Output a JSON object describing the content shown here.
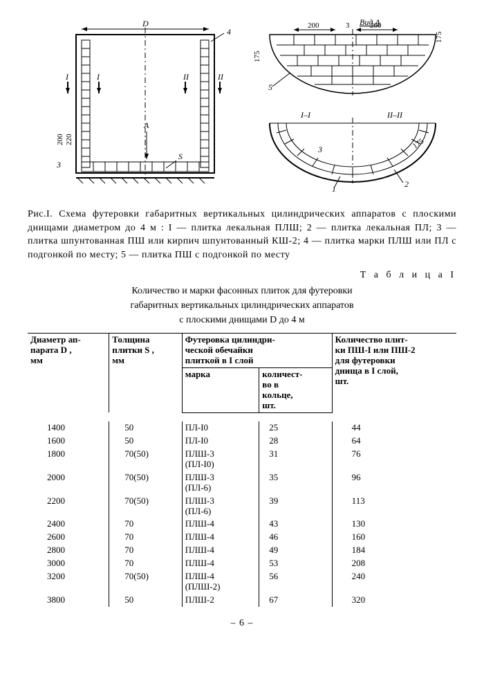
{
  "diagram": {
    "view_a_label": "Вид А",
    "dim_D": "D",
    "dim_200a": "200",
    "dim_200b": "200",
    "dim_175a": "175",
    "dim_175b": "175",
    "dim_175c": "175",
    "dim_200v": "200",
    "dim_220v": "220",
    "sec_I": "I",
    "sec_II": "II",
    "sec_I_I": "I–I",
    "sec_II_II": "II–II",
    "mark_A": "А",
    "mark_S": "S",
    "call_1": "1",
    "call_2": "2",
    "call_3": "3",
    "call_3b": "3",
    "call_4": "4",
    "call_5": "5"
  },
  "caption": "Рис.I. Схема футеровки габаритных вертикальных цилиндрических аппаратов с плоскими днищами диаметром до 4 м : I — плитка лекальная ПЛШ; 2 — плитка лекальная ПЛ; 3 — плитка шпунтованная ПШ или кирпич шпунтованный КШ-2; 4 — плитка марки ПЛШ или ПЛ с подгонкой по месту; 5 — плитка ПШ с подгонкой по месту",
  "table_label": "Т а б л и ц а   I",
  "table_title_line1": "Количество и марки фасонных плиток для футеровки",
  "table_title_line2": "габаритных вертикальных цилиндрических аппаратов",
  "table_title_line3": "с плоскими днищами   D   до 4 м",
  "headers": {
    "col1": "Диаметр ап-\nпарата D ,\nмм",
    "col2": "Толщина\nплитки S ,\nмм",
    "col3": "Футеровка цилиндри-\nческой обечайки\nплиткой в I слой",
    "col4": "Количество плит-\nки ПШ-I или ПШ-2\nдля футеровки\nднища в I слой,\nшт.",
    "sub_a": "марка",
    "sub_b": "количест-\nво в\nкольце,\nшт."
  },
  "rows": [
    {
      "d": "1400",
      "s": "50",
      "m": "ПЛ-I0",
      "q": "25",
      "p": "44"
    },
    {
      "d": "1600",
      "s": "50",
      "m": "ПЛ-I0",
      "q": "28",
      "p": "64"
    },
    {
      "d": "1800",
      "s": "70(50)",
      "m": "ПЛШ-3\n(ПЛ-I0)",
      "q": "31",
      "p": "76"
    },
    {
      "d": "2000",
      "s": "70(50)",
      "m": "ПЛШ-3\n(ПЛ-6)",
      "q": "35",
      "p": "96"
    },
    {
      "d": "2200",
      "s": "70(50)",
      "m": "ПЛШ-3\n(ПЛ-6)",
      "q": "39",
      "p": "113"
    },
    {
      "d": "2400",
      "s": "70",
      "m": "ПЛШ-4",
      "q": "43",
      "p": "130"
    },
    {
      "d": "2600",
      "s": "70",
      "m": "ПЛШ-4",
      "q": "46",
      "p": "160"
    },
    {
      "d": "2800",
      "s": "70",
      "m": "ПЛШ-4",
      "q": "49",
      "p": "184"
    },
    {
      "d": "3000",
      "s": "70",
      "m": "ПЛШ-4",
      "q": "53",
      "p": "208"
    },
    {
      "d": "3200",
      "s": "70(50)",
      "m": "ПЛШ-4\n(ПЛШ-2)",
      "q": "56",
      "p": "240"
    },
    {
      "d": "3800",
      "s": "50",
      "m": "ПЛШ-2",
      "q": "67",
      "p": "320"
    }
  ],
  "page_number": "– 6 –"
}
